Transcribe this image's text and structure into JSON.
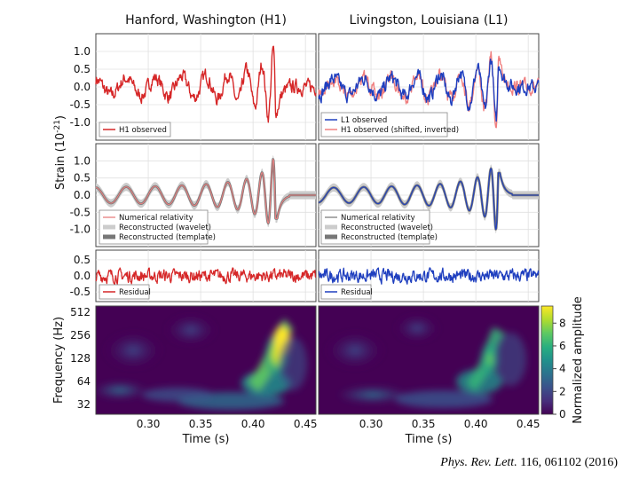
{
  "citation": {
    "journal": "Phys. Rev. Lett.",
    "rest": "116, 061102 (2016)"
  },
  "colors": {
    "h1": "#d62728",
    "l1": "#1f3fbf",
    "h1_shifted": "#f08080",
    "nr": "#e88080",
    "nr_l1": "#808080",
    "wavelet": "#cccccc",
    "template": "#777777"
  },
  "chart_data": [
    {
      "id": "row-observed",
      "type": "line",
      "columns": [
        "Hanford, Washington (H1)",
        "Livingston, Louisiana (L1)"
      ],
      "ylabel": "Strain (10",
      "ylabel_exp": "-21",
      "ylabel_end": ")",
      "ylim": [
        -1.5,
        1.5
      ],
      "yticks": [
        "1.0",
        "0.5",
        "0.0",
        "-0.5",
        "-1.0"
      ],
      "ytick_values": [
        1.0,
        0.5,
        0.0,
        -0.5,
        -1.0
      ],
      "xlim": [
        0.25,
        0.46
      ],
      "legend_left": [
        "H1 observed"
      ],
      "legend_right": [
        "L1 observed",
        "H1 observed (shifted, inverted)"
      ]
    },
    {
      "id": "row-reconstructed",
      "type": "line",
      "ylim": [
        -1.5,
        1.5
      ],
      "yticks": [
        "1.0",
        "0.5",
        "0.0",
        "-0.5",
        "-1.0"
      ],
      "ytick_values": [
        1.0,
        0.5,
        0.0,
        -0.5,
        -1.0
      ],
      "xlim": [
        0.25,
        0.46
      ],
      "legend": [
        "Numerical relativity",
        "Reconstructed (wavelet)",
        "Reconstructed (template)"
      ]
    },
    {
      "id": "row-residual",
      "type": "line",
      "ylim": [
        -0.8,
        0.8
      ],
      "yticks": [
        "0.5",
        "0.0",
        "-0.5"
      ],
      "ytick_values": [
        0.5,
        0.0,
        -0.5
      ],
      "xlim": [
        0.25,
        0.46
      ],
      "legend": [
        "Residual"
      ]
    },
    {
      "id": "row-spectrogram",
      "type": "heatmap",
      "ylabel": "Frequency (Hz)",
      "yticks": [
        "512",
        "256",
        "128",
        "64",
        "32"
      ],
      "ytick_values": [
        512,
        256,
        128,
        64,
        32
      ],
      "xlabel": "Time (s)",
      "xticks": [
        "0.30",
        "0.35",
        "0.40",
        "0.45"
      ],
      "xtick_values": [
        0.3,
        0.35,
        0.4,
        0.45
      ],
      "xlim": [
        0.25,
        0.46
      ],
      "colorbar_label": "Normalized amplitude",
      "colorbar_ticks": [
        "8",
        "6",
        "4",
        "2",
        "0"
      ],
      "colorbar_values": [
        8,
        6,
        4,
        2,
        0
      ],
      "colorbar_range": [
        0,
        9.5
      ],
      "chirp_peak_h1": {
        "time": 0.42,
        "freq_hz": 180,
        "amplitude": 9
      },
      "chirp_peak_l1": {
        "time": 0.415,
        "freq_hz": 160,
        "amplitude": 7
      }
    }
  ]
}
